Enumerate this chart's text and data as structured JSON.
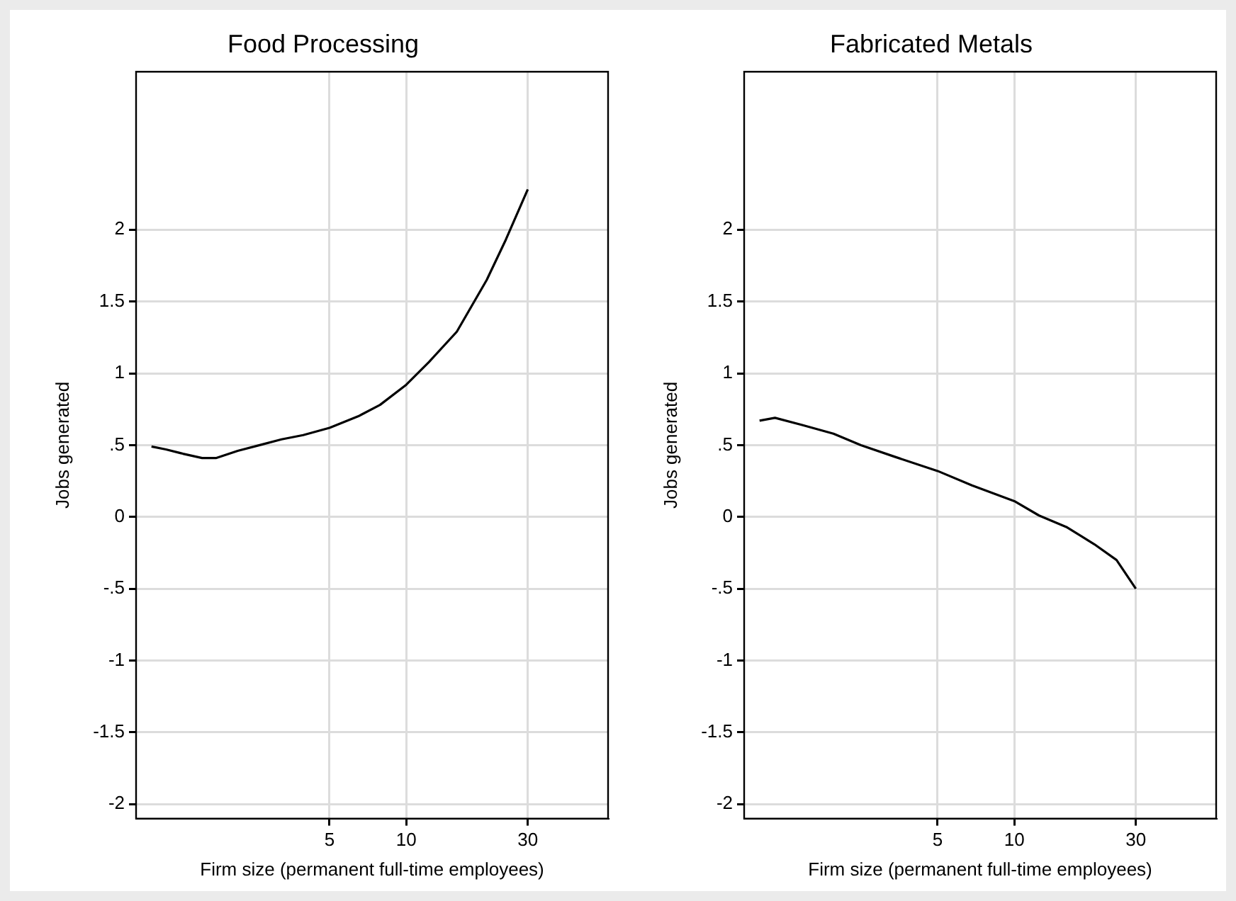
{
  "chart_data": [
    {
      "type": "line",
      "title": "Food Processing",
      "xlabel": "Firm size (permanent full-time employees)",
      "ylabel": "Jobs generated",
      "log": "x",
      "grid": true,
      "marker": "none",
      "line_style": "solid",
      "color": "#000000",
      "x": [
        1.0,
        1.14,
        1.33,
        1.58,
        1.79,
        2.18,
        2.66,
        3.24,
        3.94,
        5,
        6.47,
        7.89,
        10,
        12.3,
        15.8,
        20.7,
        24.6,
        30
      ],
      "values": [
        0.49,
        0.47,
        0.44,
        0.41,
        0.41,
        0.46,
        0.5,
        0.54,
        0.57,
        0.62,
        0.7,
        0.78,
        0.92,
        1.08,
        1.29,
        1.65,
        1.93,
        2.28
      ],
      "xlim": [
        0.87,
        62
      ],
      "ylim": [
        -2.1,
        3.1
      ],
      "xticks": [
        5,
        10,
        30
      ],
      "yticks": [
        -2,
        {
          "value": -1.5,
          "label": "-1.5"
        },
        -1,
        {
          "value": -0.5,
          "label": "-.5"
        },
        0,
        {
          "value": 0.5,
          "label": ".5"
        },
        1,
        {
          "value": 1.5,
          "label": "1.5"
        },
        2
      ]
    },
    {
      "type": "line",
      "title": "Fabricated Metals",
      "xlabel": "Firm size (permanent full-time employees)",
      "ylabel": "Jobs generated",
      "log": "x",
      "grid": true,
      "marker": "none",
      "line_style": "solid",
      "color": "#000000",
      "x": [
        1.0,
        1.15,
        1.47,
        1.95,
        2.5,
        3.38,
        5,
        6.82,
        10,
        12.5,
        16.0,
        20.6,
        25.2,
        30
      ],
      "values": [
        0.67,
        0.69,
        0.64,
        0.58,
        0.5,
        0.42,
        0.32,
        0.22,
        0.11,
        0.01,
        -0.07,
        -0.19,
        -0.3,
        -0.5
      ],
      "xlim": [
        0.87,
        62
      ],
      "ylim": [
        -2.1,
        3.1
      ],
      "xticks": [
        5,
        10,
        30
      ],
      "yticks": [
        -2,
        {
          "value": -1.5,
          "label": "-1.5"
        },
        -1,
        {
          "value": -0.5,
          "label": "-.5"
        },
        0,
        {
          "value": 0.5,
          "label": ".5"
        },
        1,
        {
          "value": 1.5,
          "label": "1.5"
        },
        2
      ]
    }
  ]
}
